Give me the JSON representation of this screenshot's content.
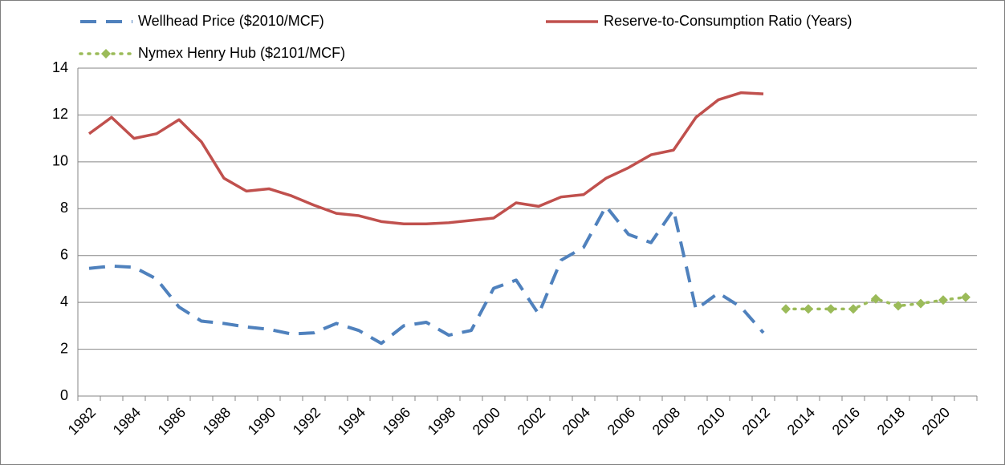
{
  "chart_data": {
    "type": "line",
    "categories": [
      "1982",
      null,
      "1984",
      null,
      "1986",
      null,
      "1988",
      null,
      "1990",
      null,
      "1992",
      null,
      "1994",
      null,
      "1996",
      null,
      "1998",
      null,
      "2000",
      null,
      "2002",
      null,
      "2004",
      null,
      "2006",
      null,
      "2008",
      null,
      "2010",
      null,
      "2012",
      null,
      "2014",
      null,
      "2016",
      null,
      "2018",
      null,
      "2020",
      null
    ],
    "series": [
      {
        "name": "Wellhead Price ($2010/MCF)",
        "color": "#4f81bd",
        "line_style": "dashed",
        "marker": "none",
        "values": [
          5.45,
          5.55,
          5.5,
          5.0,
          3.8,
          3.2,
          3.1,
          2.95,
          2.85,
          2.65,
          2.7,
          3.1,
          2.8,
          2.25,
          3.0,
          3.15,
          2.6,
          2.8,
          4.6,
          4.95,
          3.5,
          5.8,
          6.35,
          8.1,
          6.9,
          6.55,
          7.95,
          3.7,
          4.4,
          3.8,
          2.7,
          null,
          null,
          null,
          null,
          null,
          null,
          null,
          null,
          null
        ]
      },
      {
        "name": "Reserve-to-Consumption Ratio (Years)",
        "color": "#c0504d",
        "line_style": "solid",
        "marker": "none",
        "values": [
          11.2,
          11.9,
          11.0,
          11.2,
          11.8,
          10.85,
          9.3,
          8.75,
          8.85,
          8.55,
          8.15,
          7.8,
          7.7,
          7.45,
          7.35,
          7.35,
          7.4,
          7.5,
          7.6,
          8.25,
          8.1,
          8.5,
          8.6,
          9.3,
          9.75,
          10.3,
          10.5,
          11.9,
          12.65,
          12.95,
          12.9,
          null,
          null,
          null,
          null,
          null,
          null,
          null,
          null,
          null
        ]
      },
      {
        "name": "Nymex Henry Hub ($2101/MCF)",
        "color": "#9bbb59",
        "line_style": "dotted",
        "marker": "diamond",
        "values": [
          null,
          null,
          null,
          null,
          null,
          null,
          null,
          null,
          null,
          null,
          null,
          null,
          null,
          null,
          null,
          null,
          null,
          null,
          null,
          null,
          null,
          null,
          null,
          null,
          null,
          null,
          null,
          null,
          null,
          null,
          null,
          3.72,
          3.72,
          3.72,
          3.72,
          4.15,
          3.85,
          3.95,
          4.1,
          4.22
        ]
      }
    ],
    "ylim": [
      0,
      14
    ],
    "yticks": [
      0,
      2,
      4,
      6,
      8,
      10,
      12,
      14
    ],
    "grid": true,
    "legend": "top"
  }
}
